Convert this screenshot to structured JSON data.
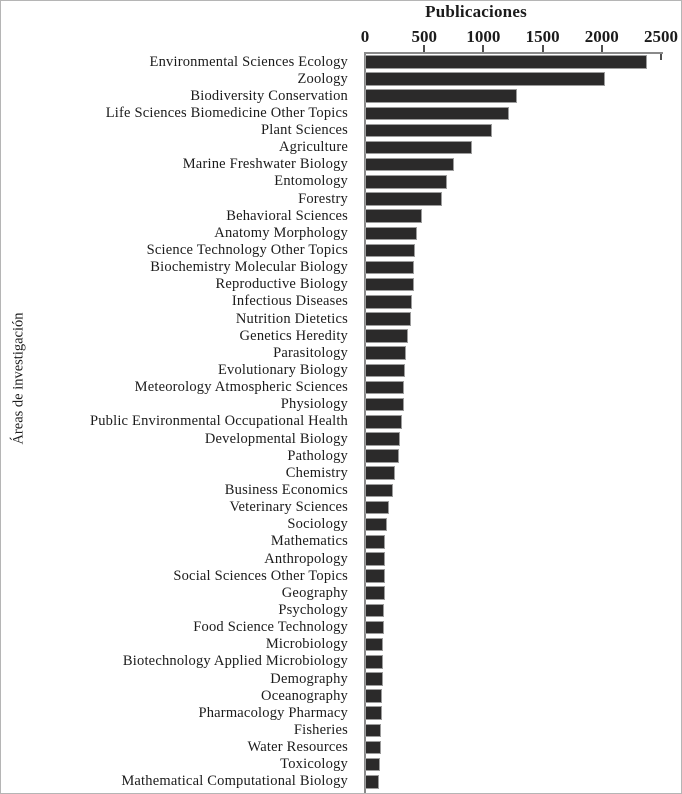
{
  "chart_data": {
    "type": "bar",
    "orientation": "horizontal",
    "title": "Publicaciones",
    "xlabel": "Publicaciones",
    "ylabel": "Áreas de investigación",
    "xlim": [
      0,
      2500
    ],
    "x_ticks": [
      0,
      500,
      1000,
      1500,
      2000,
      2500
    ],
    "grid": false,
    "legend": "none",
    "bar_color": "#2b2a2a",
    "bar_border_color": "#9c9c9c",
    "axis_color": "#8a8a8a",
    "text_color": "#1b1b1b",
    "categories": [
      "Environmental Sciences Ecology",
      "Zoology",
      "Biodiversity Conservation",
      "Life Sciences Biomedicine Other Topics",
      "Plant Sciences",
      "Agriculture",
      "Marine Freshwater Biology",
      "Entomology",
      "Forestry",
      "Behavioral Sciences",
      "Anatomy Morphology",
      "Science Technology Other Topics",
      "Biochemistry Molecular Biology",
      "Reproductive Biology",
      "Infectious Diseases",
      "Nutrition Dietetics",
      "Genetics Heredity",
      "Parasitology",
      "Evolutionary Biology",
      "Meteorology Atmospheric Sciences",
      "Physiology",
      "Public Environmental Occupational Health",
      "Developmental Biology",
      "Pathology",
      "Chemistry",
      "Business Economics",
      "Veterinary Sciences",
      "Sociology",
      "Mathematics",
      "Anthropology",
      "Social Sciences Other Topics",
      "Geography",
      "Psychology",
      "Food Science Technology",
      "Microbiology",
      "Biotechnology Applied Microbiology",
      "Demography",
      "Oceanography",
      "Pharmacology Pharmacy",
      "Fisheries",
      "Water Resources",
      "Toxicology",
      "Mathematical Computational Biology"
    ],
    "values": [
      2380,
      2030,
      1280,
      1220,
      1070,
      900,
      750,
      690,
      650,
      480,
      435,
      420,
      415,
      410,
      400,
      390,
      365,
      345,
      338,
      333,
      330,
      310,
      295,
      290,
      255,
      240,
      200,
      190,
      172,
      170,
      168,
      165,
      160,
      158,
      155,
      152,
      150,
      146,
      141,
      136,
      131,
      126,
      118
    ]
  }
}
